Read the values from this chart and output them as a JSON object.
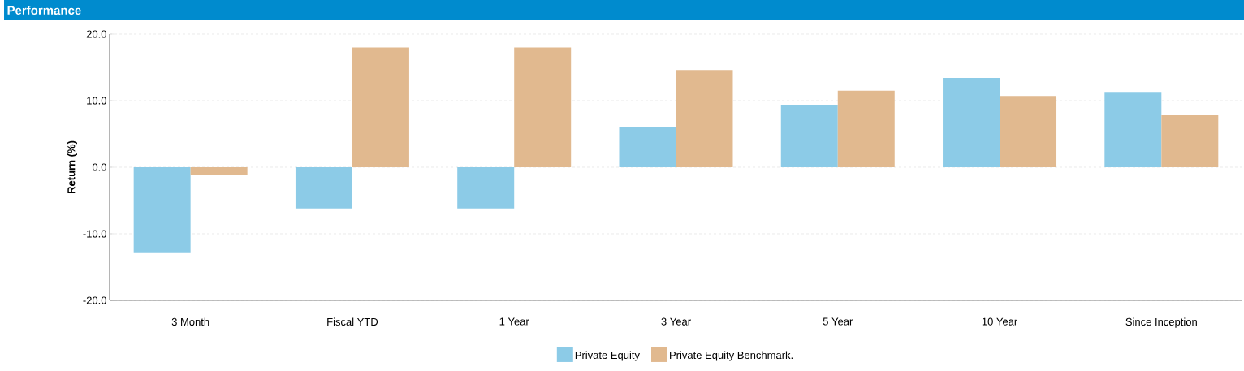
{
  "chart_data": {
    "type": "bar",
    "title": "Performance",
    "ylabel": "Return (%)",
    "categories": [
      "3 Month",
      "Fiscal YTD",
      "1 Year",
      "3 Year",
      "5 Year",
      "10 Year",
      "Since Inception"
    ],
    "series": [
      {
        "name": "Private Equity",
        "color": "#8ccbe7",
        "values": [
          -12.9,
          -6.2,
          -6.2,
          6.0,
          9.4,
          13.4,
          11.3
        ]
      },
      {
        "name": "Private Equity Benchmark.",
        "color": "#e1b98f",
        "values": [
          -1.2,
          18.0,
          18.0,
          14.6,
          11.5,
          10.7,
          7.8
        ]
      }
    ],
    "ylim": [
      -20,
      20
    ],
    "yticks": [
      {
        "value": -20,
        "label": "-20.0"
      },
      {
        "value": -10,
        "label": "-10.0"
      },
      {
        "value": 0,
        "label": "0.0"
      },
      {
        "value": 10,
        "label": "10.0"
      },
      {
        "value": 20,
        "label": "20.0"
      }
    ],
    "grid": "y",
    "legend": "bottom"
  }
}
